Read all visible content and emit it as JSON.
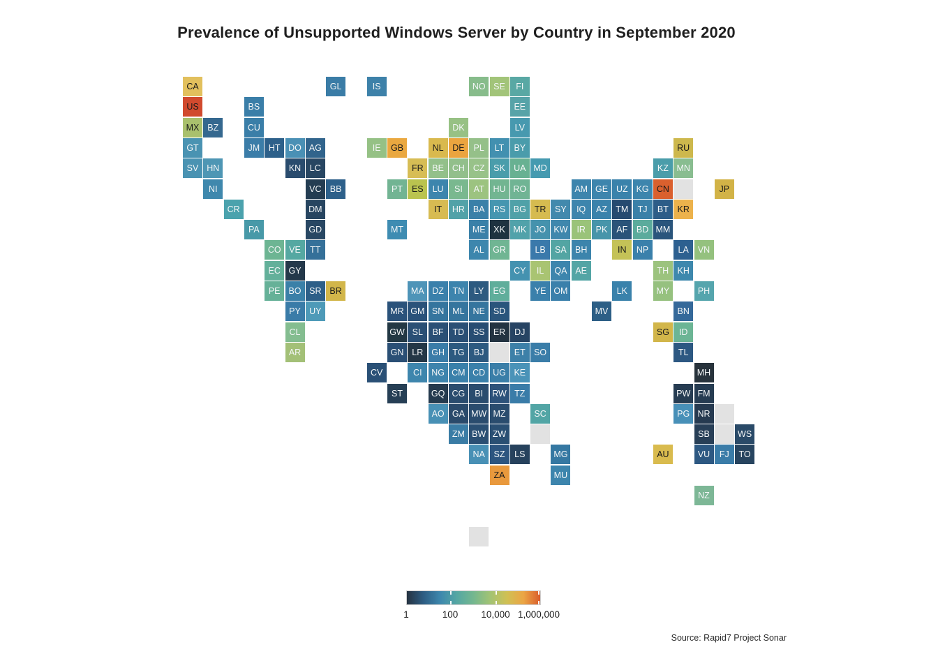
{
  "title": "Prevalence of Unsupported Windows Server by Country in September 2020",
  "source": "Source: Rapid7 Project Sonar",
  "legend": {
    "tick_labels": [
      "1",
      "100",
      "10,000",
      "1,000,000"
    ],
    "gradient": [
      "#263341",
      "#2d5d83",
      "#3d87ad",
      "#55a7a3",
      "#74b78f",
      "#a2c374",
      "#d0c054",
      "#eba545",
      "#d95c2b"
    ]
  },
  "no_data_color": "#e2e2e2",
  "chart_data": {
    "type": "heatmap",
    "subtype": "tile-grid-world-map",
    "title": "Prevalence of Unsupported Windows Server by Country in September 2020",
    "scale": {
      "type": "log",
      "tick_labels": [
        "1",
        "100",
        "10,000",
        "1,000,000"
      ],
      "description": "color encodes count of unsupported Windows Server hosts, dark navy = 1, orange-red = 1,000,000"
    },
    "legend_position": "bottom-center",
    "tile_format": "[country_code, grid_col, grid_row, tile_color_hex, dark_text_flag]",
    "tiles": [
      [
        "CA",
        0,
        0,
        "#e2c05d",
        1
      ],
      [
        "GL",
        7,
        0,
        "#3a7ca6",
        0
      ],
      [
        "IS",
        9,
        0,
        "#3d81a9",
        0
      ],
      [
        "NO",
        14,
        0,
        "#87bc8b",
        0
      ],
      [
        "SE",
        15,
        0,
        "#a2c479",
        0
      ],
      [
        "FI",
        16,
        0,
        "#59a8a4",
        0
      ],
      [
        "US",
        0,
        1,
        "#d14a2e",
        1
      ],
      [
        "BS",
        3,
        1,
        "#3a7ea8",
        0
      ],
      [
        "EE",
        16,
        1,
        "#57a3a8",
        0
      ],
      [
        "MX",
        0,
        2,
        "#a9c06d",
        1
      ],
      [
        "BZ",
        1,
        2,
        "#35688f",
        0
      ],
      [
        "CU",
        3,
        2,
        "#3a7ea8",
        0
      ],
      [
        "DK",
        13,
        2,
        "#97c184",
        0
      ],
      [
        "LV",
        16,
        2,
        "#4799af",
        0
      ],
      [
        "GT",
        0,
        3,
        "#4a93b2",
        0
      ],
      [
        "JM",
        3,
        3,
        "#3b7da8",
        0
      ],
      [
        "HT",
        4,
        3,
        "#2d608a",
        0
      ],
      [
        "DO",
        5,
        3,
        "#4a90b5",
        0
      ],
      [
        "AG",
        6,
        3,
        "#31648c",
        0
      ],
      [
        "IE",
        9,
        3,
        "#95c185",
        0
      ],
      [
        "GB",
        10,
        3,
        "#eaa840",
        1
      ],
      [
        "NL",
        12,
        3,
        "#d9b94e",
        1
      ],
      [
        "DE",
        13,
        3,
        "#eba43f",
        1
      ],
      [
        "PL",
        14,
        3,
        "#95c089",
        0
      ],
      [
        "LT",
        15,
        3,
        "#4290b0",
        0
      ],
      [
        "BY",
        16,
        3,
        "#4a9cab",
        0
      ],
      [
        "RU",
        24,
        3,
        "#cdb84d",
        1
      ],
      [
        "SV",
        0,
        4,
        "#4a93b2",
        0
      ],
      [
        "HN",
        1,
        4,
        "#4e96b4",
        0
      ],
      [
        "KN",
        5,
        4,
        "#2a4c6e",
        0
      ],
      [
        "LC",
        6,
        4,
        "#284662",
        0
      ],
      [
        "FR",
        11,
        4,
        "#d7bd55",
        1
      ],
      [
        "BE",
        12,
        4,
        "#93c08a",
        0
      ],
      [
        "CH",
        13,
        4,
        "#92bf8b",
        0
      ],
      [
        "CZ",
        14,
        4,
        "#98c289",
        0
      ],
      [
        "SK",
        15,
        4,
        "#4a9dab",
        0
      ],
      [
        "UA",
        16,
        4,
        "#68b192",
        0
      ],
      [
        "MD",
        17,
        4,
        "#459ab0",
        0
      ],
      [
        "KZ",
        23,
        4,
        "#4a9daa",
        0
      ],
      [
        "MN",
        24,
        4,
        "#89bd90",
        0
      ],
      [
        "NI",
        1,
        5,
        "#3f88ad",
        0
      ],
      [
        "VC",
        6,
        5,
        "#243d52",
        0
      ],
      [
        "BB",
        7,
        5,
        "#2d608a",
        0
      ],
      [
        "PT",
        10,
        5,
        "#72b493",
        0
      ],
      [
        "ES",
        11,
        5,
        "#bac34f",
        1
      ],
      [
        "LU",
        12,
        5,
        "#3d85ad",
        0
      ],
      [
        "SI",
        13,
        5,
        "#79b88f",
        0
      ],
      [
        "AT",
        14,
        5,
        "#9cc380",
        0
      ],
      [
        "HU",
        15,
        5,
        "#72b591",
        0
      ],
      [
        "RO",
        16,
        5,
        "#70b494",
        0
      ],
      [
        "AM",
        19,
        5,
        "#3d85ad",
        0
      ],
      [
        "GE",
        20,
        5,
        "#3d85ad",
        0
      ],
      [
        "UZ",
        21,
        5,
        "#3a82ab",
        0
      ],
      [
        "KG",
        22,
        5,
        "#3d85ad",
        0
      ],
      [
        "CN",
        23,
        5,
        "#da602e",
        1
      ],
      [
        "JP",
        26,
        5,
        "#d2b347",
        1
      ],
      [
        "CR",
        2,
        6,
        "#4ba2ad",
        0
      ],
      [
        "DM",
        6,
        6,
        "#274560",
        0
      ],
      [
        "IT",
        12,
        6,
        "#d7bb52",
        1
      ],
      [
        "HR",
        13,
        6,
        "#52a2a8",
        0
      ],
      [
        "BA",
        14,
        6,
        "#3a80a8",
        0
      ],
      [
        "RS",
        15,
        6,
        "#4696b0",
        0
      ],
      [
        "BG",
        16,
        6,
        "#50a1a8",
        0
      ],
      [
        "TR",
        17,
        6,
        "#d6bb50",
        1
      ],
      [
        "SY",
        18,
        6,
        "#4289ad",
        0
      ],
      [
        "IQ",
        19,
        6,
        "#3d85ad",
        0
      ],
      [
        "AZ",
        20,
        6,
        "#3a82ab",
        0
      ],
      [
        "TM",
        21,
        6,
        "#254a70",
        0
      ],
      [
        "TJ",
        22,
        6,
        "#3a80a8",
        0
      ],
      [
        "BT",
        23,
        6,
        "#2d5d88",
        0
      ],
      [
        "KR",
        24,
        6,
        "#ecb24c",
        1
      ],
      [
        "PA",
        3,
        7,
        "#4899a8",
        0
      ],
      [
        "GD",
        6,
        7,
        "#284763",
        0
      ],
      [
        "MT",
        10,
        7,
        "#3e8cb2",
        0
      ],
      [
        "ME",
        14,
        7,
        "#3a80a8",
        0
      ],
      [
        "XK",
        15,
        7,
        "#1f3240",
        0
      ],
      [
        "MK",
        16,
        7,
        "#51a2aa",
        0
      ],
      [
        "JO",
        17,
        7,
        "#4592ad",
        0
      ],
      [
        "KW",
        18,
        7,
        "#3f87ad",
        0
      ],
      [
        "IR",
        19,
        7,
        "#9ac379",
        0
      ],
      [
        "PK",
        20,
        7,
        "#4795aa",
        0
      ],
      [
        "AF",
        21,
        7,
        "#2a5379",
        0
      ],
      [
        "BD",
        22,
        7,
        "#5bab9c",
        0
      ],
      [
        "MM",
        23,
        7,
        "#2a557c",
        0
      ],
      [
        "CO",
        4,
        8,
        "#6db593",
        0
      ],
      [
        "VE",
        5,
        8,
        "#55a8a2",
        0
      ],
      [
        "TT",
        6,
        8,
        "#357099",
        0
      ],
      [
        "AL",
        14,
        8,
        "#3d86ad",
        0
      ],
      [
        "GR",
        15,
        8,
        "#70b593",
        0
      ],
      [
        "LB",
        17,
        8,
        "#3a79ab",
        0
      ],
      [
        "SA",
        18,
        8,
        "#53a5a3",
        0
      ],
      [
        "BH",
        19,
        8,
        "#3c84ac",
        0
      ],
      [
        "IN",
        21,
        8,
        "#c4c257",
        1
      ],
      [
        "NP",
        22,
        8,
        "#3a80ab",
        0
      ],
      [
        "LA",
        24,
        8,
        "#2d6090",
        0
      ],
      [
        "VN",
        25,
        8,
        "#94c17e",
        0
      ],
      [
        "EC",
        4,
        9,
        "#63b09a",
        0
      ],
      [
        "GY",
        5,
        9,
        "#24384a",
        0
      ],
      [
        "CY",
        16,
        9,
        "#4492b0",
        0
      ],
      [
        "IL",
        17,
        9,
        "#a9c472",
        0
      ],
      [
        "QA",
        18,
        9,
        "#3d85ad",
        0
      ],
      [
        "AE",
        19,
        9,
        "#53a5a5",
        0
      ],
      [
        "TH",
        23,
        9,
        "#9cc37e",
        0
      ],
      [
        "KH",
        24,
        9,
        "#3e88ad",
        0
      ],
      [
        "PE",
        4,
        10,
        "#66b198",
        0
      ],
      [
        "BO",
        5,
        10,
        "#3a80a8",
        0
      ],
      [
        "SR",
        6,
        10,
        "#2d5f88",
        0
      ],
      [
        "BR",
        7,
        10,
        "#d2b64a",
        1
      ],
      [
        "MA",
        11,
        10,
        "#4e94b8",
        0
      ],
      [
        "DZ",
        12,
        10,
        "#3a80ab",
        0
      ],
      [
        "TN",
        13,
        10,
        "#3d84ad",
        0
      ],
      [
        "LY",
        14,
        10,
        "#2d5a80",
        0
      ],
      [
        "EG",
        15,
        10,
        "#60ae9b",
        0
      ],
      [
        "YE",
        17,
        10,
        "#3a80ab",
        0
      ],
      [
        "OM",
        18,
        10,
        "#3a80ab",
        0
      ],
      [
        "LK",
        21,
        10,
        "#3a82ab",
        0
      ],
      [
        "MY",
        23,
        10,
        "#96c17f",
        0
      ],
      [
        "PH",
        25,
        10,
        "#55a5ad",
        0
      ],
      [
        "PY",
        5,
        11,
        "#3a7ca8",
        0
      ],
      [
        "UY",
        6,
        11,
        "#4e9ab8",
        0
      ],
      [
        "MR",
        10,
        11,
        "#2a527a",
        0
      ],
      [
        "GM",
        11,
        11,
        "#2a527a",
        0
      ],
      [
        "SN",
        12,
        11,
        "#35759e",
        0
      ],
      [
        "ML",
        13,
        11,
        "#35759e",
        0
      ],
      [
        "NE",
        14,
        11,
        "#35759e",
        0
      ],
      [
        "SD",
        15,
        11,
        "#2a557c",
        0
      ],
      [
        "MV",
        20,
        11,
        "#2d5f86",
        0
      ],
      [
        "BN",
        24,
        11,
        "#35699a",
        0
      ],
      [
        "CL",
        5,
        12,
        "#84bd90",
        0
      ],
      [
        "GW",
        10,
        12,
        "#233844",
        0
      ],
      [
        "SL",
        11,
        12,
        "#2a4f75",
        0
      ],
      [
        "BF",
        12,
        12,
        "#2a4f75",
        0
      ],
      [
        "TD",
        13,
        12,
        "#2a4f75",
        0
      ],
      [
        "SS",
        14,
        12,
        "#284d72",
        0
      ],
      [
        "ER",
        15,
        12,
        "#233341",
        0
      ],
      [
        "DJ",
        16,
        12,
        "#274463",
        0
      ],
      [
        "SG",
        23,
        12,
        "#d2b64a",
        1
      ],
      [
        "ID",
        24,
        12,
        "#6cb595",
        0
      ],
      [
        "AR",
        5,
        13,
        "#a3c077",
        0
      ],
      [
        "GN",
        10,
        13,
        "#2a4f75",
        0
      ],
      [
        "LR",
        11,
        13,
        "#243746",
        0
      ],
      [
        "GH",
        12,
        13,
        "#3a7ca8",
        0
      ],
      [
        "TG",
        13,
        13,
        "#2d5a80",
        0
      ],
      [
        "BJ",
        14,
        13,
        "#2d5a80",
        0
      ],
      [
        "ET",
        16,
        13,
        "#3d80a8",
        0
      ],
      [
        "SO",
        17,
        13,
        "#3a7da8",
        0
      ],
      [
        "TL",
        24,
        13,
        "#2d5882",
        0
      ],
      [
        "CV",
        9,
        14,
        "#2a5076",
        0
      ],
      [
        "CI",
        11,
        14,
        "#3e86ad",
        0
      ],
      [
        "NG",
        12,
        14,
        "#3d84ad",
        0
      ],
      [
        "CM",
        13,
        14,
        "#3a80aa",
        0
      ],
      [
        "CD",
        14,
        14,
        "#3a80aa",
        0
      ],
      [
        "UG",
        15,
        14,
        "#3a7ea8",
        0
      ],
      [
        "KE",
        16,
        14,
        "#4a93b8",
        0
      ],
      [
        "MH",
        25,
        14,
        "#28333c",
        0
      ],
      [
        "ST",
        10,
        15,
        "#263f55",
        0
      ],
      [
        "GQ",
        12,
        15,
        "#253a4e",
        0
      ],
      [
        "CG",
        13,
        15,
        "#2a4c6e",
        0
      ],
      [
        "BI",
        14,
        15,
        "#2a4c6e",
        0
      ],
      [
        "RW",
        15,
        15,
        "#2d527a",
        0
      ],
      [
        "TZ",
        16,
        15,
        "#3a7ca8",
        0
      ],
      [
        "PW",
        24,
        15,
        "#263c52",
        0
      ],
      [
        "FM",
        25,
        15,
        "#263c52",
        0
      ],
      [
        "AO",
        12,
        16,
        "#4890b5",
        0
      ],
      [
        "GA",
        13,
        16,
        "#2a4a6b",
        0
      ],
      [
        "MW",
        14,
        16,
        "#2a4c6e",
        0
      ],
      [
        "MZ",
        15,
        16,
        "#2a4c6e",
        0
      ],
      [
        "SC",
        17,
        16,
        "#52a5a5",
        0
      ],
      [
        "PG",
        24,
        16,
        "#4890b8",
        0
      ],
      [
        "NR",
        25,
        16,
        "#263a50",
        0
      ],
      [
        "ZM",
        13,
        17,
        "#3a7ca5",
        0
      ],
      [
        "BW",
        14,
        17,
        "#2a4f73",
        0
      ],
      [
        "ZW",
        15,
        17,
        "#2a4f73",
        0
      ],
      [
        "SB",
        25,
        17,
        "#283f57",
        0
      ],
      [
        "WS",
        27,
        17,
        "#2a4a68",
        0
      ],
      [
        "NA",
        14,
        18,
        "#4890b5",
        0
      ],
      [
        "SZ",
        15,
        18,
        "#2d5580",
        0
      ],
      [
        "LS",
        16,
        18,
        "#27425d",
        0
      ],
      [
        "MG",
        18,
        18,
        "#3578a2",
        0
      ],
      [
        "AU",
        23,
        18,
        "#d9bb4e",
        1
      ],
      [
        "VU",
        25,
        18,
        "#2d5882",
        0
      ],
      [
        "FJ",
        26,
        18,
        "#3a7ca8",
        0
      ],
      [
        "TO",
        27,
        18,
        "#27445f",
        0
      ],
      [
        "ZA",
        15,
        19,
        "#e9993d",
        1
      ],
      [
        "MU",
        18,
        19,
        "#3d85ad",
        0
      ],
      [
        "NZ",
        25,
        20,
        "#7db796",
        0
      ]
    ],
    "no_data_tiles": [
      [
        24,
        5
      ],
      [
        15,
        13
      ],
      [
        26,
        16
      ],
      [
        17,
        17
      ],
      [
        26,
        17
      ],
      [
        14,
        22
      ]
    ]
  }
}
